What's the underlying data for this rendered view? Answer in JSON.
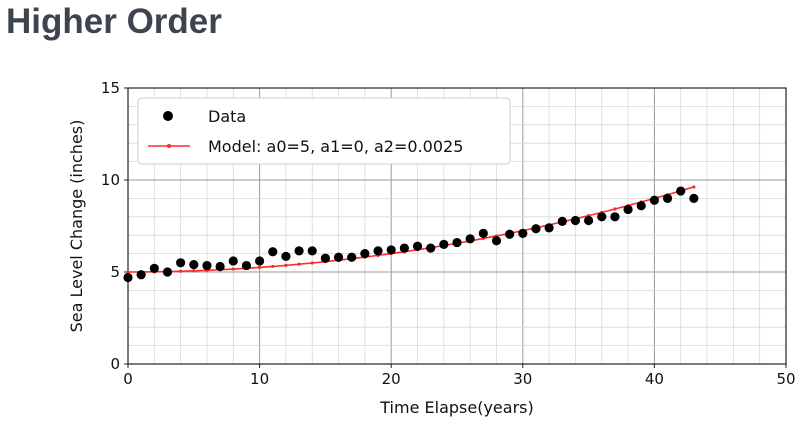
{
  "page": {
    "heading": "Higher Order"
  },
  "colors": {
    "data_points": "#000000",
    "model_line": "#ff2a2a",
    "grid": "#b0b0b0",
    "heading": "#3d4450"
  },
  "chart_data": {
    "type": "scatter",
    "title": "",
    "xlabel": "Time Elapse(years)",
    "ylabel": "Sea Level Change (inches)",
    "xlim": [
      0,
      50
    ],
    "ylim": [
      0,
      15
    ],
    "x_ticks": [
      "0",
      "10",
      "20",
      "30",
      "40",
      "50"
    ],
    "y_ticks": [
      "0",
      "5",
      "10",
      "15"
    ],
    "minor_grid": true,
    "grid": true,
    "legend_position": "top-left",
    "series": [
      {
        "name": "Data",
        "style": "markers",
        "x": [
          0,
          1,
          2,
          3,
          4,
          5,
          6,
          7,
          8,
          9,
          10,
          11,
          12,
          13,
          14,
          15,
          16,
          17,
          18,
          19,
          20,
          21,
          22,
          23,
          24,
          25,
          26,
          27,
          28,
          29,
          30,
          31,
          32,
          33,
          34,
          35,
          36,
          37,
          38,
          39,
          40,
          41,
          42,
          43
        ],
        "y": [
          4.7,
          4.85,
          5.2,
          5.0,
          5.5,
          5.4,
          5.35,
          5.3,
          5.6,
          5.35,
          5.6,
          6.1,
          5.85,
          6.15,
          6.15,
          5.75,
          5.8,
          5.8,
          6.0,
          6.15,
          6.2,
          6.3,
          6.4,
          6.3,
          6.5,
          6.6,
          6.8,
          7.1,
          6.7,
          7.05,
          7.1,
          7.35,
          7.4,
          7.75,
          7.8,
          7.8,
          8.0,
          8.0,
          8.4,
          8.6,
          8.9,
          9.0,
          9.4,
          9.0
        ]
      },
      {
        "name": "Model: a0=5, a1=0, a2=0.0025",
        "style": "line-markers",
        "a0": 5,
        "a1": 0,
        "a2": 0.0025,
        "x_range": [
          0,
          43
        ]
      }
    ]
  }
}
